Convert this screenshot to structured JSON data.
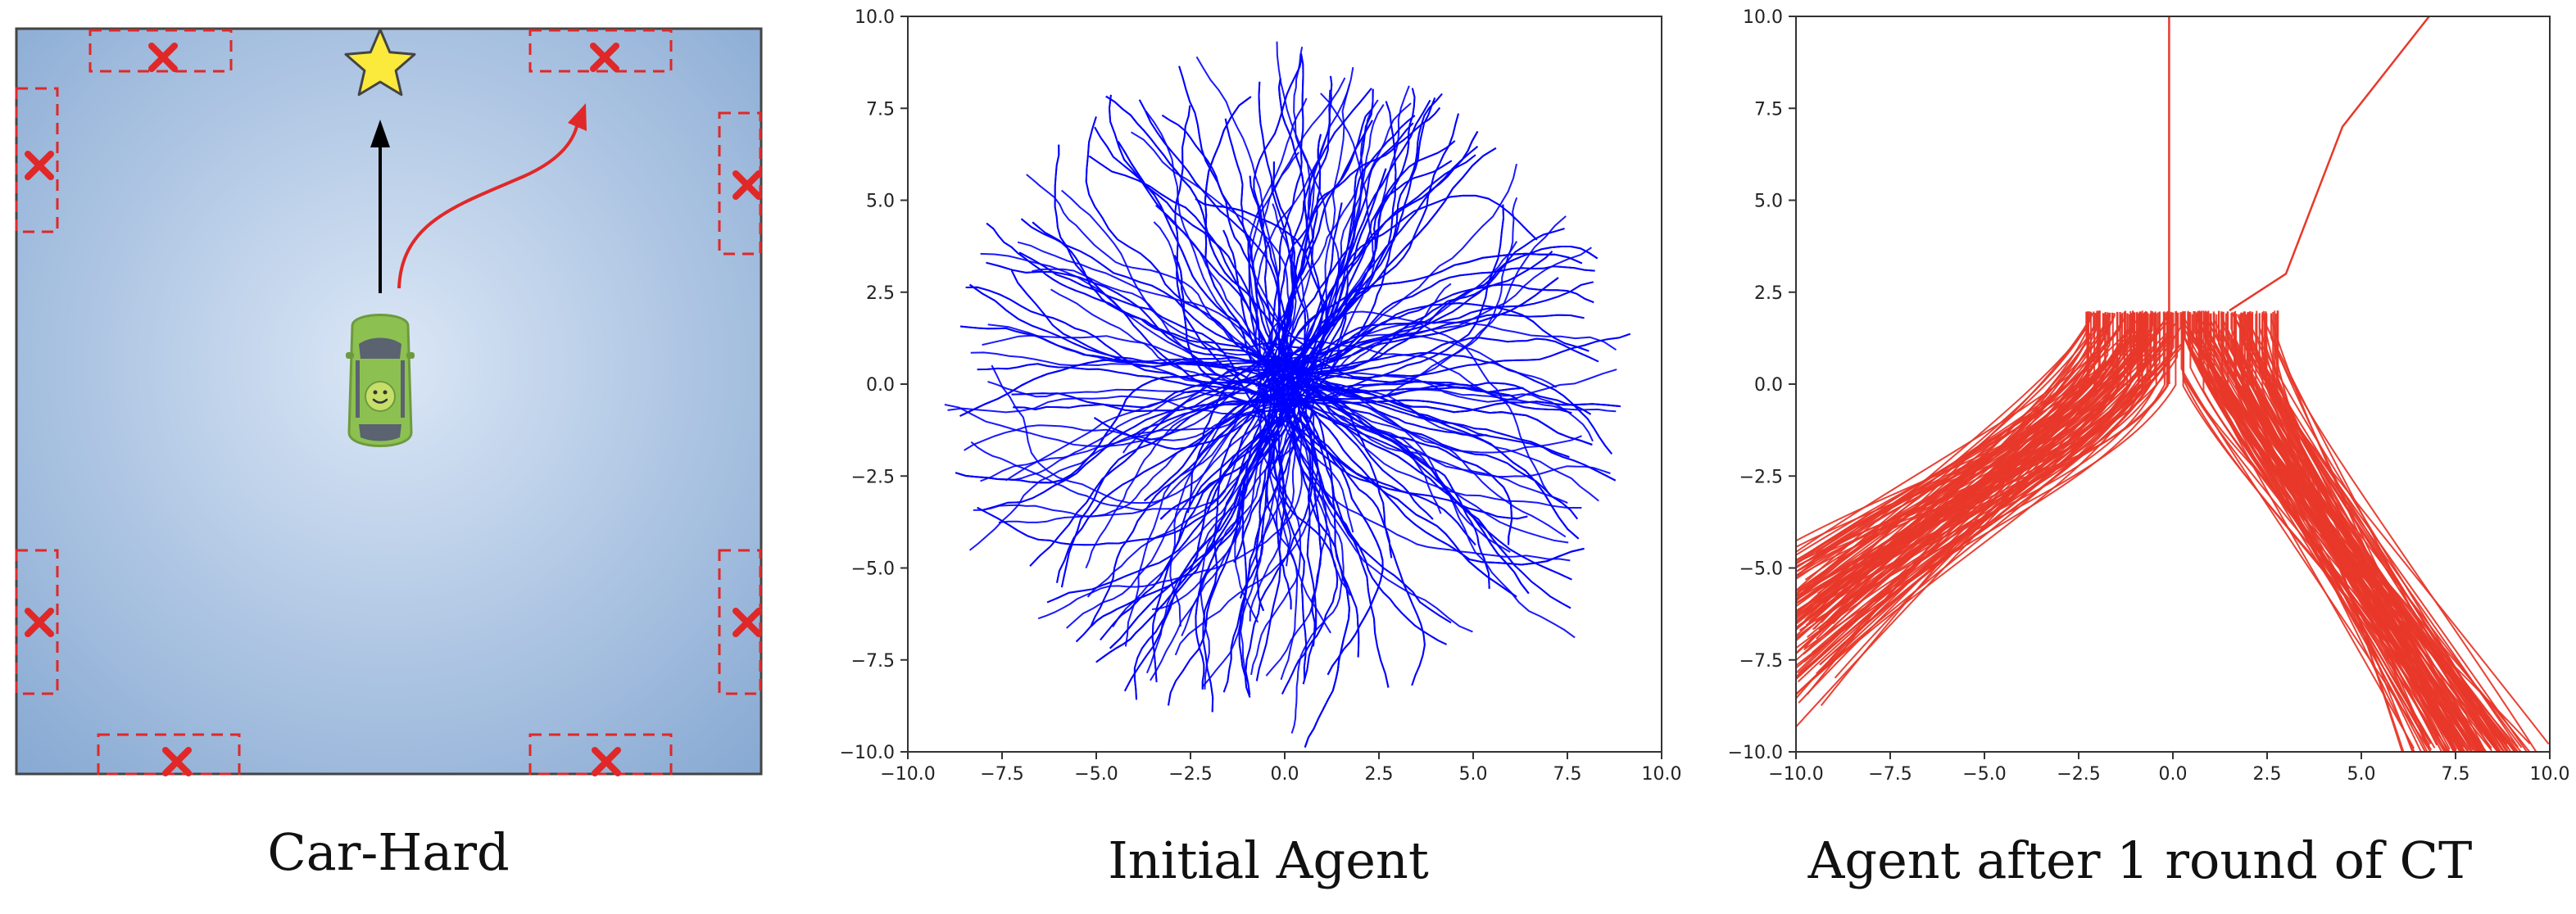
{
  "captions": {
    "left": "Car-Hard",
    "middle": "Initial Agent",
    "right": "Agent after 1 round of CT"
  },
  "colors": {
    "arena_center": "#dbe7f6",
    "arena_edge": "#86a8d2",
    "obstacle": "#e02828",
    "goal_star": "#fbea3c",
    "car": "#8cc152",
    "initial_traj": "#0000ff",
    "ct_traj": "#e8382a"
  },
  "icons": {
    "goal": "star-icon",
    "obstacle": "x-mark-icon",
    "agent": "car-icon",
    "straight_path": "up-arrow-icon",
    "curved_path": "curved-arrow-icon"
  },
  "chart_data": [
    {
      "type": "line",
      "description_of_series": "random trajectories radiating from origin",
      "xlim": [
        -10,
        10
      ],
      "ylim": [
        -10,
        10
      ],
      "xticks": [
        "−10.0",
        "−7.5",
        "−5.0",
        "−2.5",
        "0.0",
        "2.5",
        "5.0",
        "7.5",
        "10.0"
      ],
      "yticks": [
        "−10.0",
        "−7.5",
        "−5.0",
        "−2.5",
        "0.0",
        "2.5",
        "5.0",
        "7.5",
        "10.0"
      ],
      "grid": false,
      "series": [
        {
          "color": "#0000ff",
          "trajectory_count": 400,
          "origin": [
            0,
            0
          ],
          "max_radius": 10
        }
      ]
    },
    {
      "type": "line",
      "xlim": [
        -10,
        10
      ],
      "ylim": [
        -10,
        10
      ],
      "xticks": [
        "−10.0",
        "−7.5",
        "−5.0",
        "−2.5",
        "0.0",
        "2.5",
        "5.0",
        "7.5",
        "10.0"
      ],
      "yticks": [
        "−10.0",
        "−7.5",
        "−5.0",
        "−2.5",
        "0.0",
        "2.5",
        "5.0",
        "7.5",
        "10.0"
      ],
      "grid": false,
      "series": [
        {
          "color": "#e8382a",
          "bundles": [
            {
              "from": [
                -1.0,
                2.0
              ],
              "to": [
                -10,
                -6.5
              ],
              "count": 120
            },
            {
              "from": [
                1.5,
                2.0
              ],
              "to": [
                8.0,
                -10
              ],
              "count": 120
            }
          ],
          "single_lines": [
            {
              "x": [
                -0.1,
                -0.1
              ],
              "y": [
                0,
                10
              ]
            },
            {
              "x": [
                1.5,
                3.0,
                4.5,
                6.8
              ],
              "y": [
                2.0,
                3.0,
                7.0,
                10.0
              ]
            }
          ]
        }
      ]
    }
  ]
}
